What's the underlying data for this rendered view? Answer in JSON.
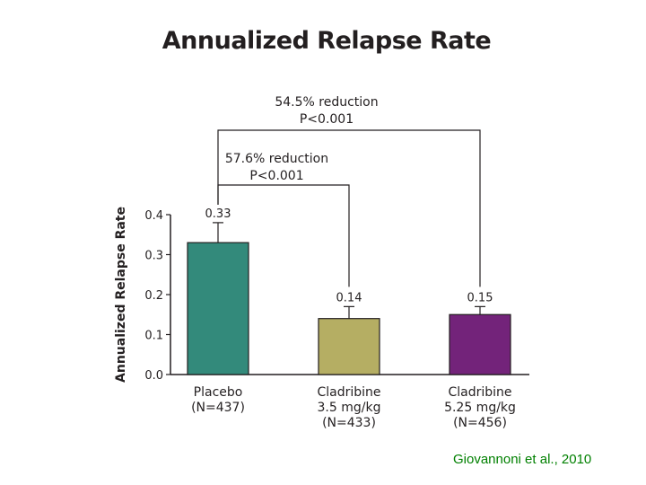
{
  "chart_data": {
    "type": "bar",
    "title": "Annualized Relapse Rate",
    "xlabel": "",
    "ylabel": "Annualized Relapse Rate",
    "ylim": [
      0,
      0.4
    ],
    "yticks": [
      "0.0",
      "0.1",
      "0.2",
      "0.3",
      "0.4"
    ],
    "categories": [
      {
        "name": "Placebo",
        "lines": [
          "Placebo",
          "(N=437)"
        ]
      },
      {
        "name": "Cladribine 3.5 mg/kg",
        "lines": [
          "Cladribine",
          "3.5 mg/kg",
          "(N=433)"
        ]
      },
      {
        "name": "Cladribine 5.25 mg/kg",
        "lines": [
          "Cladribine",
          "5.25 mg/kg",
          "(N=456)"
        ]
      }
    ],
    "values": [
      0.33,
      0.14,
      0.15
    ],
    "value_labels": [
      "0.33",
      "0.14",
      "0.15"
    ],
    "error_upper": [
      0.38,
      0.17,
      0.17
    ],
    "colors": [
      "#338a7b",
      "#b5ae63",
      "#73237a"
    ],
    "comparisons": [
      {
        "from": 0,
        "to": 1,
        "lines": [
          "57.6% reduction",
          "P<0.001"
        ]
      },
      {
        "from": 0,
        "to": 2,
        "lines": [
          "54.5% reduction",
          "P<0.001"
        ]
      }
    ]
  },
  "citation": "Giovannoni et al., 2010"
}
